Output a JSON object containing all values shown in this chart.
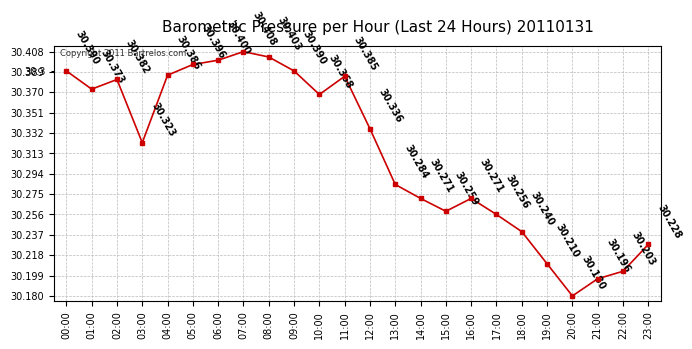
{
  "title": "Barometric Pressure per Hour (Last 24 Hours) 20110131",
  "copyright_text": "Copyright 2011 Bartrelos.com",
  "hours": [
    "00:00",
    "01:00",
    "02:00",
    "03:00",
    "04:00",
    "05:00",
    "06:00",
    "07:00",
    "08:00",
    "09:00",
    "10:00",
    "11:00",
    "12:00",
    "13:00",
    "14:00",
    "15:00",
    "16:00",
    "17:00",
    "18:00",
    "19:00",
    "20:00",
    "21:00",
    "22:00",
    "23:00"
  ],
  "values": [
    30.39,
    30.373,
    30.382,
    30.323,
    30.386,
    30.396,
    30.4,
    30.408,
    30.403,
    30.39,
    30.368,
    30.385,
    30.336,
    30.284,
    30.271,
    30.259,
    30.271,
    30.256,
    30.24,
    30.21,
    30.18,
    30.196,
    30.203,
    30.228
  ],
  "line_color": "#cc0000",
  "marker_color": "#cc0000",
  "bg_color": "#ffffff",
  "grid_color": "#bbbbbb",
  "title_fontsize": 11,
  "label_fontsize": 7,
  "annotation_fontsize": 7,
  "ylim_min": 30.175,
  "ylim_max": 30.413,
  "ytick_values": [
    30.18,
    30.199,
    30.218,
    30.237,
    30.256,
    30.275,
    30.294,
    30.313,
    30.332,
    30.351,
    30.37,
    30.389,
    30.408
  ]
}
